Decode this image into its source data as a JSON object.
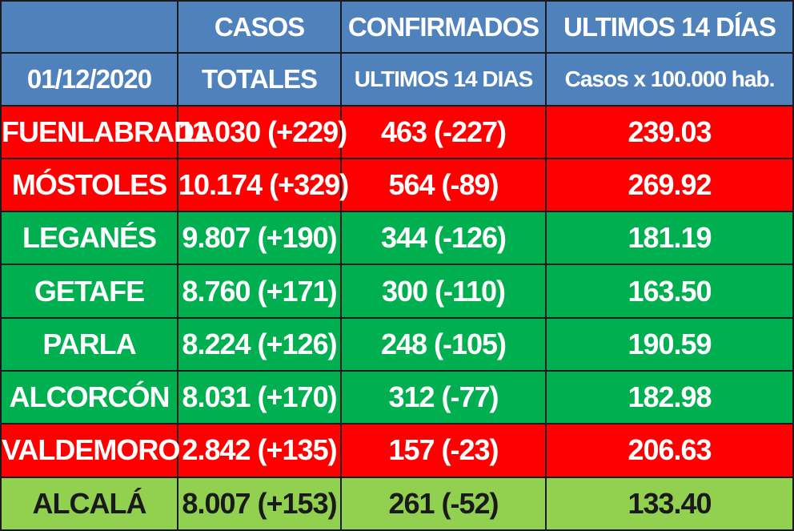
{
  "header": {
    "row1": [
      "",
      "CASOS",
      "CONFIRMADOS",
      "ULTIMOS 14 DÍAS"
    ],
    "row2": [
      "01/12/2020",
      "TOTALES",
      "ULTIMOS 14 DIAS",
      "Casos x 100.000 hab."
    ]
  },
  "colors": {
    "header_blue": "#4f81bd",
    "red": "#ff0000",
    "green": "#00b050",
    "light_green": "#92d050"
  },
  "rows": [
    {
      "municipio": "FUENLABRADA",
      "casos_totales": "11.030 (+229)",
      "confirmados_14": "463 (-227)",
      "incidencia_14": "239.03",
      "color": "red"
    },
    {
      "municipio": "MÓSTOLES",
      "casos_totales": "10.174 (+329)",
      "confirmados_14": "564 (-89)",
      "incidencia_14": "269.92",
      "color": "red"
    },
    {
      "municipio": "LEGANÉS",
      "casos_totales": "9.807 (+190)",
      "confirmados_14": "344 (-126)",
      "incidencia_14": "181.19",
      "color": "green"
    },
    {
      "municipio": "GETAFE",
      "casos_totales": "8.760 (+171)",
      "confirmados_14": "300 (-110)",
      "incidencia_14": "163.50",
      "color": "green"
    },
    {
      "municipio": "PARLA",
      "casos_totales": "8.224 (+126)",
      "confirmados_14": "248 (-105)",
      "incidencia_14": "190.59",
      "color": "green"
    },
    {
      "municipio": "ALCORCÓN",
      "casos_totales": "8.031 (+170)",
      "confirmados_14": "312 (-77)",
      "incidencia_14": "182.98",
      "color": "green"
    },
    {
      "municipio": "VALDEMORO",
      "casos_totales": "2.842 (+135)",
      "confirmados_14": "157 (-23)",
      "incidencia_14": "206.63",
      "color": "red"
    },
    {
      "municipio": "ALCALÁ",
      "casos_totales": "8.007 (+153)",
      "confirmados_14": "261 (-52)",
      "incidencia_14": "133.40",
      "color": "light_green"
    }
  ]
}
